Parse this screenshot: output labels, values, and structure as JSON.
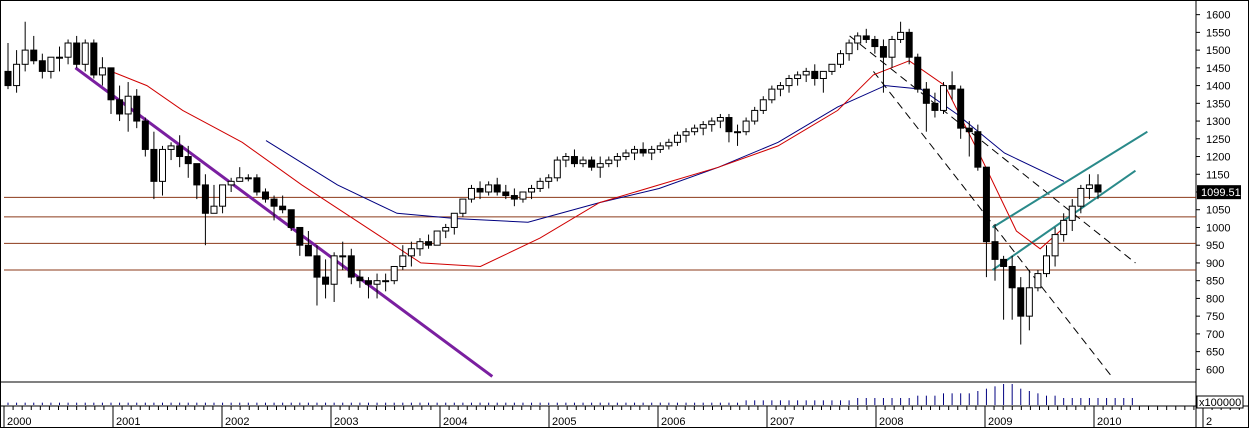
{
  "chart_data": {
    "type": "candlestick",
    "title": "",
    "xlabel": "",
    "ylabel": "",
    "ylim": [
      570,
      1630
    ],
    "y_ticks": [
      600,
      650,
      700,
      750,
      800,
      850,
      900,
      950,
      1000,
      1050,
      1100,
      1150,
      1200,
      1250,
      1300,
      1350,
      1400,
      1450,
      1500,
      1550,
      1600
    ],
    "x_labels": [
      "2000",
      "2001",
      "2002",
      "2003",
      "2004",
      "2005",
      "2006",
      "2007",
      "2008",
      "2009",
      "2010",
      "2"
    ],
    "last_price_label": "1099.51",
    "volume_scale_label": "x100000",
    "grid": false,
    "colors": {
      "up_fill": "#ffffff",
      "down_fill": "#000000",
      "ma_short": "#d00000",
      "ma_long": "#000080",
      "trendline": "#7a1fa0",
      "channel": "#2a8a8a",
      "support": "#8b3a1a",
      "volume": "#000080"
    },
    "candles": [
      [
        1440,
        1520,
        1390,
        1400
      ],
      [
        1400,
        1500,
        1380,
        1460
      ],
      [
        1460,
        1580,
        1440,
        1500
      ],
      [
        1500,
        1540,
        1460,
        1470
      ],
      [
        1470,
        1490,
        1420,
        1440
      ],
      [
        1440,
        1480,
        1420,
        1480
      ],
      [
        1480,
        1510,
        1440,
        1480
      ],
      [
        1480,
        1530,
        1460,
        1520
      ],
      [
        1520,
        1540,
        1450,
        1460
      ],
      [
        1460,
        1530,
        1440,
        1520
      ],
      [
        1520,
        1530,
        1420,
        1430
      ],
      [
        1430,
        1480,
        1400,
        1450
      ],
      [
        1450,
        1450,
        1320,
        1360
      ],
      [
        1360,
        1400,
        1300,
        1320
      ],
      [
        1320,
        1410,
        1270,
        1370
      ],
      [
        1370,
        1390,
        1280,
        1300
      ],
      [
        1300,
        1310,
        1200,
        1220
      ],
      [
        1220,
        1270,
        1080,
        1130
      ],
      [
        1130,
        1230,
        1090,
        1220
      ],
      [
        1220,
        1240,
        1190,
        1230
      ],
      [
        1230,
        1260,
        1170,
        1200
      ],
      [
        1200,
        1230,
        1140,
        1180
      ],
      [
        1180,
        1180,
        1080,
        1120
      ],
      [
        1120,
        1150,
        950,
        1040
      ],
      [
        1040,
        1120,
        1040,
        1060
      ],
      [
        1060,
        1120,
        1040,
        1120
      ],
      [
        1120,
        1140,
        1100,
        1130
      ],
      [
        1130,
        1170,
        1130,
        1140
      ],
      [
        1140,
        1150,
        1130,
        1140
      ],
      [
        1140,
        1150,
        1090,
        1100
      ],
      [
        1100,
        1110,
        1070,
        1080
      ],
      [
        1080,
        1090,
        1020,
        1060
      ],
      [
        1060,
        1090,
        1040,
        1050
      ],
      [
        1050,
        1050,
        990,
        1000
      ],
      [
        1000,
        1000,
        920,
        950
      ],
      [
        950,
        990,
        920,
        920
      ],
      [
        920,
        950,
        780,
        860
      ],
      [
        860,
        910,
        800,
        840
      ],
      [
        840,
        930,
        790,
        920
      ],
      [
        920,
        960,
        880,
        920
      ],
      [
        920,
        940,
        840,
        860
      ],
      [
        860,
        880,
        830,
        850
      ],
      [
        850,
        860,
        800,
        840
      ],
      [
        840,
        870,
        800,
        850
      ],
      [
        850,
        870,
        820,
        850
      ],
      [
        850,
        890,
        840,
        890
      ],
      [
        890,
        950,
        880,
        920
      ],
      [
        920,
        960,
        890,
        940
      ],
      [
        940,
        970,
        920,
        960
      ],
      [
        960,
        980,
        940,
        950
      ],
      [
        950,
        990,
        950,
        990
      ],
      [
        990,
        1010,
        970,
        1000
      ],
      [
        1000,
        1040,
        980,
        1040
      ],
      [
        1040,
        1080,
        1030,
        1080
      ],
      [
        1080,
        1120,
        1070,
        1110
      ],
      [
        1110,
        1130,
        1080,
        1100
      ],
      [
        1100,
        1130,
        1090,
        1120
      ],
      [
        1120,
        1140,
        1090,
        1100
      ],
      [
        1100,
        1120,
        1080,
        1090
      ],
      [
        1090,
        1110,
        1060,
        1080
      ],
      [
        1080,
        1100,
        1070,
        1100
      ],
      [
        1100,
        1120,
        1080,
        1110
      ],
      [
        1110,
        1140,
        1100,
        1130
      ],
      [
        1130,
        1150,
        1110,
        1140
      ],
      [
        1140,
        1200,
        1130,
        1190
      ],
      [
        1190,
        1210,
        1170,
        1200
      ],
      [
        1200,
        1220,
        1170,
        1180
      ],
      [
        1180,
        1200,
        1170,
        1190
      ],
      [
        1190,
        1200,
        1160,
        1170
      ],
      [
        1170,
        1200,
        1140,
        1180
      ],
      [
        1180,
        1200,
        1170,
        1190
      ],
      [
        1190,
        1210,
        1170,
        1200
      ],
      [
        1200,
        1220,
        1190,
        1210
      ],
      [
        1210,
        1230,
        1190,
        1220
      ],
      [
        1220,
        1240,
        1200,
        1210
      ],
      [
        1210,
        1230,
        1190,
        1220
      ],
      [
        1220,
        1240,
        1210,
        1230
      ],
      [
        1230,
        1250,
        1220,
        1240
      ],
      [
        1240,
        1270,
        1230,
        1260
      ],
      [
        1260,
        1280,
        1240,
        1270
      ],
      [
        1270,
        1290,
        1260,
        1280
      ],
      [
        1280,
        1300,
        1260,
        1290
      ],
      [
        1290,
        1310,
        1270,
        1300
      ],
      [
        1300,
        1320,
        1280,
        1310
      ],
      [
        1310,
        1320,
        1240,
        1270
      ],
      [
        1270,
        1290,
        1230,
        1270
      ],
      [
        1270,
        1310,
        1260,
        1300
      ],
      [
        1300,
        1340,
        1290,
        1330
      ],
      [
        1330,
        1370,
        1320,
        1360
      ],
      [
        1360,
        1400,
        1350,
        1390
      ],
      [
        1390,
        1410,
        1370,
        1400
      ],
      [
        1400,
        1430,
        1380,
        1420
      ],
      [
        1420,
        1440,
        1400,
        1430
      ],
      [
        1430,
        1450,
        1410,
        1440
      ],
      [
        1440,
        1460,
        1400,
        1420
      ],
      [
        1420,
        1440,
        1380,
        1440
      ],
      [
        1440,
        1460,
        1430,
        1460
      ],
      [
        1460,
        1500,
        1450,
        1490
      ],
      [
        1490,
        1530,
        1470,
        1520
      ],
      [
        1520,
        1550,
        1500,
        1540
      ],
      [
        1540,
        1560,
        1520,
        1530
      ],
      [
        1530,
        1540,
        1490,
        1510
      ],
      [
        1510,
        1530,
        1380,
        1480
      ],
      [
        1480,
        1540,
        1450,
        1530
      ],
      [
        1530,
        1580,
        1520,
        1550
      ],
      [
        1550,
        1560,
        1460,
        1480
      ],
      [
        1480,
        1490,
        1380,
        1390
      ],
      [
        1390,
        1410,
        1270,
        1350
      ],
      [
        1350,
        1380,
        1310,
        1330
      ],
      [
        1330,
        1410,
        1320,
        1400
      ],
      [
        1400,
        1440,
        1360,
        1390
      ],
      [
        1390,
        1400,
        1250,
        1280
      ],
      [
        1280,
        1300,
        1200,
        1270
      ],
      [
        1270,
        1290,
        1160,
        1170
      ],
      [
        1170,
        1170,
        860,
        960
      ],
      [
        960,
        1010,
        850,
        910
      ],
      [
        910,
        920,
        740,
        890
      ],
      [
        890,
        920,
        740,
        830
      ],
      [
        830,
        860,
        670,
        750
      ],
      [
        750,
        880,
        710,
        830
      ],
      [
        830,
        880,
        820,
        870
      ],
      [
        870,
        950,
        860,
        920
      ],
      [
        920,
        1000,
        890,
        980
      ],
      [
        980,
        1040,
        960,
        1020
      ],
      [
        1020,
        1080,
        990,
        1060
      ],
      [
        1060,
        1120,
        1040,
        1110
      ],
      [
        1110,
        1150,
        1080,
        1120
      ],
      [
        1120,
        1150,
        1080,
        1100
      ]
    ],
    "ma_short": [
      [
        0.09,
        1440
      ],
      [
        0.12,
        1400
      ],
      [
        0.15,
        1330
      ],
      [
        0.2,
        1240
      ],
      [
        0.25,
        1120
      ],
      [
        0.3,
        1010
      ],
      [
        0.35,
        900
      ],
      [
        0.4,
        890
      ],
      [
        0.45,
        970
      ],
      [
        0.5,
        1070
      ],
      [
        0.55,
        1120
      ],
      [
        0.6,
        1170
      ],
      [
        0.65,
        1230
      ],
      [
        0.7,
        1330
      ],
      [
        0.73,
        1430
      ],
      [
        0.76,
        1470
      ],
      [
        0.79,
        1400
      ],
      [
        0.82,
        1200
      ],
      [
        0.85,
        990
      ],
      [
        0.87,
        940
      ],
      [
        0.89,
        1000
      ]
    ],
    "ma_long": [
      [
        0.22,
        1245
      ],
      [
        0.28,
        1120
      ],
      [
        0.33,
        1040
      ],
      [
        0.38,
        1025
      ],
      [
        0.44,
        1015
      ],
      [
        0.5,
        1070
      ],
      [
        0.55,
        1110
      ],
      [
        0.6,
        1170
      ],
      [
        0.65,
        1240
      ],
      [
        0.7,
        1340
      ],
      [
        0.74,
        1400
      ],
      [
        0.77,
        1390
      ],
      [
        0.8,
        1320
      ],
      [
        0.84,
        1210
      ],
      [
        0.89,
        1130
      ]
    ],
    "trendlines": [
      {
        "points": [
          [
            0.06,
            1450
          ],
          [
            0.41,
            580
          ]
        ]
      },
      {
        "points": [
          [
            0.71,
            1540
          ],
          [
            0.95,
            900
          ]
        ]
      },
      {
        "points": [
          [
            0.73,
            1440
          ],
          [
            0.93,
            580
          ]
        ]
      }
    ],
    "channel": [
      {
        "points": [
          [
            0.83,
            1000
          ],
          [
            0.96,
            1270
          ]
        ]
      },
      {
        "points": [
          [
            0.83,
            880
          ],
          [
            0.95,
            1160
          ]
        ]
      }
    ],
    "horizontal_levels": [
      1085,
      1030,
      955,
      880
    ],
    "volume": [
      1,
      1,
      1,
      1,
      1,
      1,
      1,
      1,
      1,
      1,
      1,
      1,
      1,
      1,
      1,
      1,
      1,
      1,
      1,
      1,
      1,
      1,
      1,
      1,
      1,
      1,
      1,
      1,
      1,
      1,
      1,
      1,
      1,
      1,
      1,
      1,
      1,
      1,
      1,
      1,
      1,
      1,
      1,
      1,
      1,
      1,
      1,
      1,
      1,
      1,
      1,
      1,
      1,
      1,
      1,
      1,
      1,
      1,
      1,
      1,
      1,
      1,
      1,
      1,
      1,
      1,
      1,
      1,
      1,
      1,
      1,
      1,
      1,
      1,
      1,
      1,
      1,
      1,
      1,
      1,
      1,
      1,
      1,
      1,
      1,
      1,
      2,
      2,
      2,
      2,
      2,
      2,
      2,
      2,
      2,
      2,
      2,
      2,
      2,
      3,
      3,
      3,
      3,
      3,
      3,
      3,
      4,
      4,
      4,
      5,
      5,
      5,
      5,
      6,
      7,
      8,
      9,
      9,
      7,
      6,
      5,
      4,
      4,
      3,
      3,
      3,
      3,
      3,
      3,
      3,
      3,
      3
    ]
  }
}
